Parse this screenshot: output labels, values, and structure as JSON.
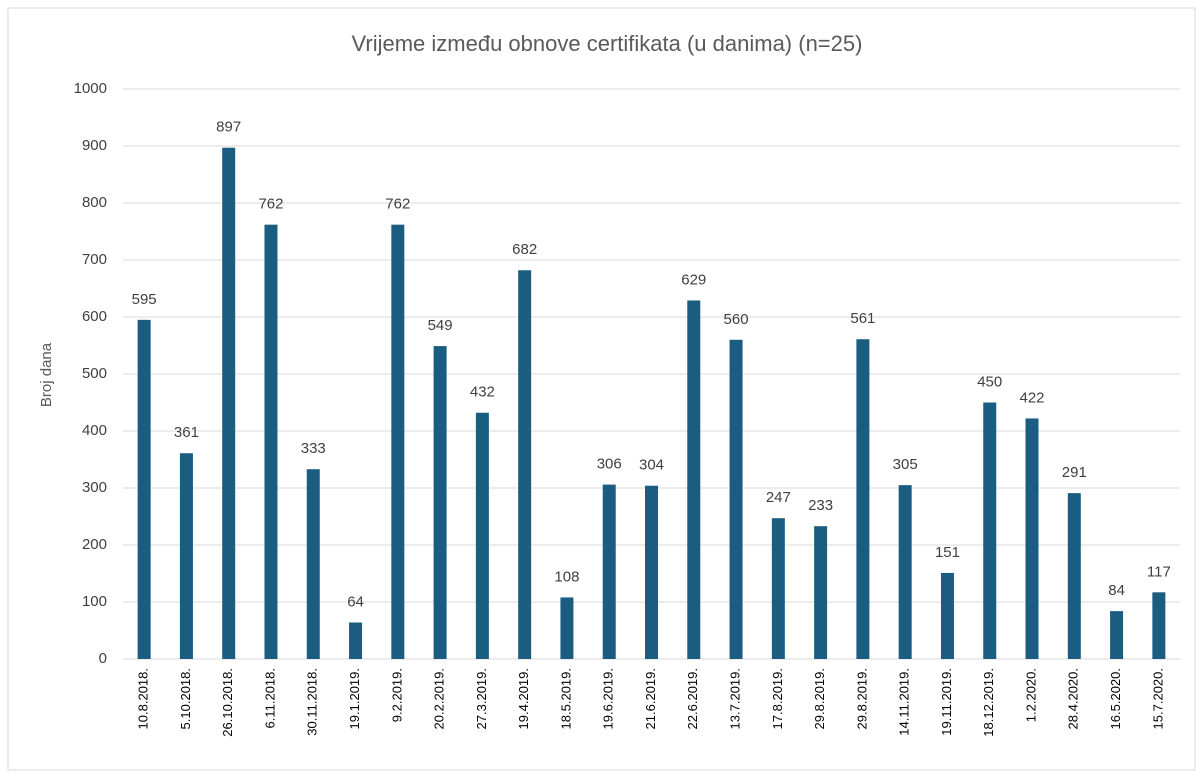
{
  "chart_data": {
    "type": "bar",
    "title": "Vrijeme između obnove certifikata (u danima) (n=25)",
    "ylabel": "Broj dana",
    "categories": [
      "10.8.2018.",
      "5.10.2018.",
      "26.10.2018.",
      "6.11.2018.",
      "30.11.2018.",
      "19.1.2019.",
      "9.2.2019.",
      "20.2.2019.",
      "27.3.2019.",
      "19.4.2019.",
      "18.5.2019.",
      "19.6.2019.",
      "21.6.2019.",
      "22.6.2019.",
      "13.7.2019.",
      "17.8.2019.",
      "29.8.2019.",
      "29.8.2019.",
      "14.11.2019.",
      "19.11.2019.",
      "18.12.2019.",
      "1.2.2020.",
      "28.4.2020.",
      "16.5.2020.",
      "15.7.2020."
    ],
    "values": [
      595,
      361,
      897,
      762,
      333,
      64,
      762,
      549,
      432,
      682,
      108,
      306,
      304,
      629,
      560,
      247,
      233,
      561,
      305,
      151,
      450,
      422,
      291,
      84,
      117
    ],
    "color": "#1b5d80",
    "ylim": [
      0,
      1000
    ],
    "yticks": [
      0,
      100,
      200,
      300,
      400,
      500,
      600,
      700,
      800,
      900,
      1000
    ],
    "grid": true
  }
}
